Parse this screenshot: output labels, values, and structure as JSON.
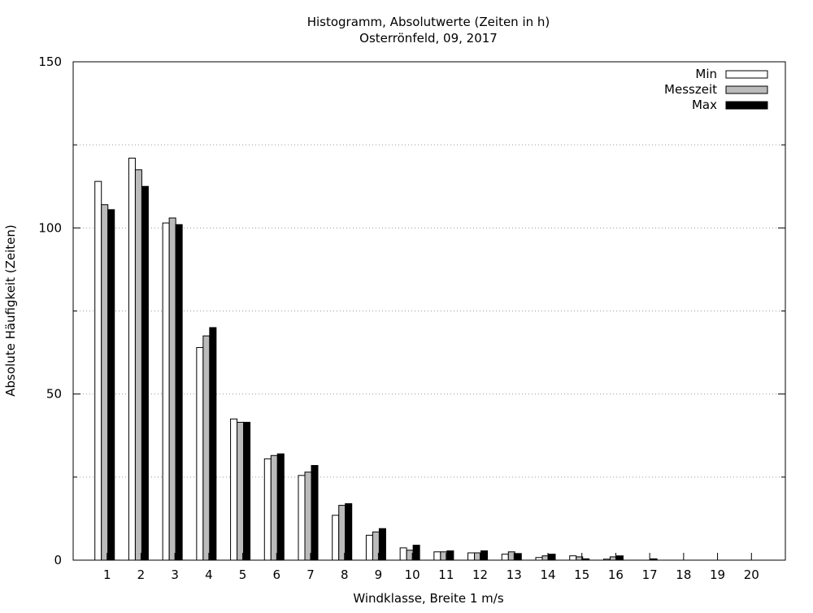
{
  "chart_data": {
    "type": "bar",
    "title": "Histogramm, Absolutwerte (Zeiten in h)",
    "subtitle": "Osterrönfeld, 09, 2017",
    "xlabel": "Windklasse, Breite 1 m/s",
    "ylabel": "Absolute Häufigkeit (Zeiten)",
    "ylim": [
      0,
      150
    ],
    "yticks": [
      "0",
      "50",
      "100",
      "150"
    ],
    "grid": true,
    "legend_position": "top-right",
    "categories": [
      "1",
      "2",
      "3",
      "4",
      "5",
      "6",
      "7",
      "8",
      "9",
      "10",
      "11",
      "12",
      "13",
      "14",
      "15",
      "16",
      "17",
      "18",
      "19",
      "20"
    ],
    "series": [
      {
        "name": "Min",
        "color": "#ffffff",
        "values": [
          114,
          121,
          101.5,
          64,
          42.5,
          30.5,
          25.5,
          13.5,
          7.5,
          3.7,
          2.5,
          2.2,
          1.8,
          0.8,
          1.3,
          0.3,
          0,
          0,
          0,
          0
        ]
      },
      {
        "name": "Messzeit",
        "color": "#bbbbbb",
        "values": [
          107,
          117.5,
          103,
          67.5,
          41.5,
          31.5,
          26.5,
          16.5,
          8.5,
          3.0,
          2.5,
          2.2,
          2.5,
          1.3,
          1.0,
          1.0,
          0,
          0,
          0,
          0
        ]
      },
      {
        "name": "Max",
        "color": "#000000",
        "values": [
          105.5,
          112.5,
          101,
          70,
          41.5,
          32,
          28.5,
          17,
          9.5,
          4.5,
          2.8,
          2.8,
          2.0,
          1.8,
          0.4,
          1.3,
          0.4,
          0,
          0,
          0
        ]
      }
    ]
  }
}
